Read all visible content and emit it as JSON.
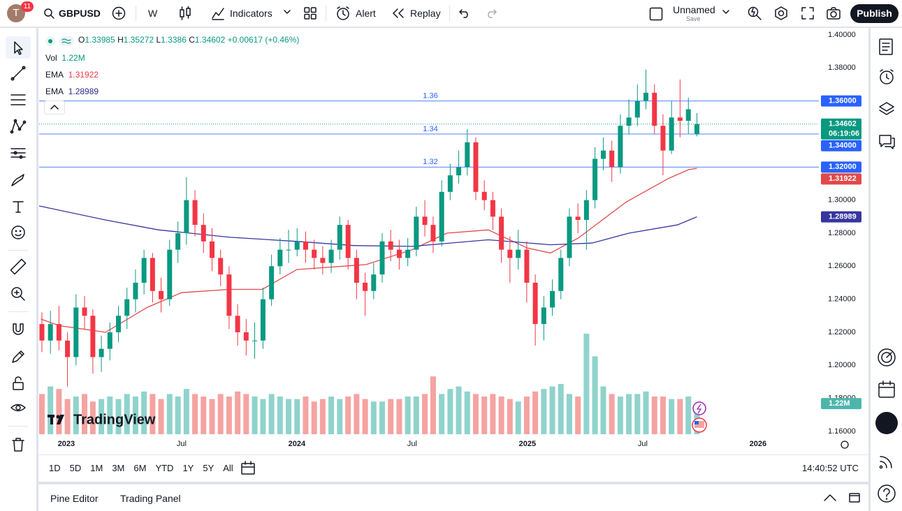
{
  "toolbar": {
    "avatar": "T",
    "badge": 11,
    "symbol": "GBPUSD",
    "interval": "W",
    "indicators": "Indicators",
    "alert": "Alert",
    "replay": "Replay",
    "layout_name": "Unnamed",
    "save": "Save",
    "publish": "Publish"
  },
  "chart_data": {
    "type": "candlestick",
    "watermark": "TradingView",
    "legend": {
      "open_key": "O",
      "high_key": "H",
      "low_key": "L",
      "close_key": "C",
      "change": {
        "value": 0.00617,
        "label": "+0.00617"
      },
      "change_pct": {
        "value": 0.46,
        "label": "(+0.46%)"
      },
      "volume_key": "Vol"
    },
    "x": [
      2022.894,
      2022.931,
      2022.968,
      2023.005,
      2023.042,
      2023.079,
      2023.115,
      2023.152,
      2023.189,
      2023.226,
      2023.263,
      2023.3,
      2023.337,
      2023.374,
      2023.411,
      2023.448,
      2023.484,
      2023.521,
      2023.558,
      2023.595,
      2023.632,
      2023.669,
      2023.706,
      2023.743,
      2023.78,
      2023.817,
      2023.853,
      2023.89,
      2023.927,
      2023.964,
      2024.001,
      2024.038,
      2024.075,
      2024.112,
      2024.149,
      2024.186,
      2024.222,
      2024.259,
      2024.296,
      2024.333,
      2024.37,
      2024.407,
      2024.444,
      2024.481,
      2024.518,
      2024.555,
      2024.591,
      2024.628,
      2024.665,
      2024.702,
      2024.739,
      2024.776,
      2024.813,
      2024.85,
      2024.887,
      2024.924,
      2024.96,
      2024.997,
      2025.034,
      2025.071,
      2025.108,
      2025.145,
      2025.182,
      2025.219,
      2025.256,
      2025.293,
      2025.329,
      2025.366,
      2025.403,
      2025.44,
      2025.477,
      2025.514,
      2025.551,
      2025.588,
      2025.625,
      2025.662,
      2025.698,
      2025.735
    ],
    "open": [
      1.225,
      1.215,
      1.225,
      1.215,
      1.205,
      1.235,
      1.23,
      1.205,
      1.21,
      1.22,
      1.23,
      1.24,
      1.25,
      1.265,
      1.245,
      1.24,
      1.27,
      1.28,
      1.3,
      1.285,
      1.275,
      1.265,
      1.255,
      1.23,
      1.22,
      1.215,
      1.215,
      1.24,
      1.26,
      1.27,
      1.27,
      1.275,
      1.27,
      1.265,
      1.262,
      1.27,
      1.285,
      1.265,
      1.25,
      1.245,
      1.255,
      1.275,
      1.27,
      1.265,
      1.27,
      1.29,
      1.285,
      1.275,
      1.305,
      1.315,
      1.32,
      1.335,
      1.305,
      1.3,
      1.29,
      1.27,
      1.265,
      1.27,
      1.25,
      1.225,
      1.235,
      1.245,
      1.265,
      1.29,
      1.288,
      1.3,
      1.325,
      1.33,
      1.32,
      1.345,
      1.35,
      1.36,
      1.365,
      1.345,
      1.33,
      1.35,
      1.348,
      1.33985
    ],
    "high": [
      1.232,
      1.233,
      1.236,
      1.22,
      1.243,
      1.242,
      1.234,
      1.218,
      1.226,
      1.236,
      1.247,
      1.258,
      1.27,
      1.268,
      1.253,
      1.276,
      1.287,
      1.314,
      1.306,
      1.292,
      1.283,
      1.27,
      1.26,
      1.237,
      1.228,
      1.226,
      1.247,
      1.267,
      1.277,
      1.282,
      1.283,
      1.281,
      1.276,
      1.272,
      1.276,
      1.29,
      1.288,
      1.27,
      1.256,
      1.262,
      1.28,
      1.282,
      1.276,
      1.277,
      1.296,
      1.3,
      1.29,
      1.312,
      1.322,
      1.33,
      1.343,
      1.338,
      1.312,
      1.305,
      1.295,
      1.278,
      1.282,
      1.275,
      1.255,
      1.242,
      1.252,
      1.27,
      1.295,
      1.298,
      1.306,
      1.332,
      1.338,
      1.336,
      1.352,
      1.361,
      1.37,
      1.379,
      1.37,
      1.352,
      1.36,
      1.373,
      1.362,
      1.35272
    ],
    "low": [
      1.208,
      1.207,
      1.209,
      1.187,
      1.2,
      1.222,
      1.195,
      1.196,
      1.203,
      1.214,
      1.222,
      1.232,
      1.243,
      1.238,
      1.232,
      1.236,
      1.262,
      1.273,
      1.278,
      1.268,
      1.257,
      1.248,
      1.222,
      1.212,
      1.206,
      1.204,
      1.21,
      1.236,
      1.255,
      1.262,
      1.266,
      1.262,
      1.258,
      1.255,
      1.256,
      1.264,
      1.258,
      1.24,
      1.23,
      1.24,
      1.25,
      1.263,
      1.258,
      1.26,
      1.266,
      1.278,
      1.268,
      1.272,
      1.3,
      1.31,
      1.315,
      1.3,
      1.294,
      1.282,
      1.262,
      1.25,
      1.258,
      1.238,
      1.212,
      1.215,
      1.23,
      1.24,
      1.26,
      1.28,
      1.27,
      1.295,
      1.318,
      1.311,
      1.316,
      1.34,
      1.345,
      1.355,
      1.34,
      1.315,
      1.328,
      1.338,
      1.34,
      1.3386
    ],
    "close": [
      1.215,
      1.225,
      1.215,
      1.205,
      1.235,
      1.23,
      1.205,
      1.21,
      1.22,
      1.23,
      1.24,
      1.25,
      1.265,
      1.245,
      1.24,
      1.27,
      1.28,
      1.3,
      1.285,
      1.275,
      1.265,
      1.255,
      1.23,
      1.22,
      1.215,
      1.215,
      1.24,
      1.26,
      1.27,
      1.27,
      1.275,
      1.27,
      1.265,
      1.262,
      1.27,
      1.285,
      1.265,
      1.25,
      1.245,
      1.255,
      1.275,
      1.27,
      1.265,
      1.27,
      1.29,
      1.285,
      1.275,
      1.305,
      1.315,
      1.32,
      1.335,
      1.305,
      1.3,
      1.29,
      1.27,
      1.265,
      1.27,
      1.25,
      1.225,
      1.235,
      1.245,
      1.265,
      1.29,
      1.288,
      1.3,
      1.325,
      1.33,
      1.32,
      1.345,
      1.35,
      1.36,
      1.365,
      1.345,
      1.33,
      1.35,
      1.348,
      1.355,
      1.34602
    ],
    "volume": [
      1.6,
      1.9,
      1.8,
      1.4,
      1.5,
      1.6,
      1.3,
      1.4,
      1.5,
      1.4,
      1.6,
      1.5,
      1.7,
      1.6,
      1.4,
      1.6,
      1.5,
      1.8,
      1.6,
      1.5,
      1.4,
      1.6,
      1.5,
      1.7,
      1.6,
      1.5,
      1.4,
      1.6,
      1.5,
      1.4,
      1.4,
      1.5,
      1.3,
      1.4,
      1.5,
      1.4,
      1.5,
      1.6,
      1.4,
      1.3,
      1.3,
      1.4,
      1.4,
      1.5,
      1.5,
      1.6,
      2.3,
      1.6,
      1.8,
      1.9,
      1.7,
      1.6,
      1.5,
      1.6,
      1.5,
      1.4,
      1.3,
      1.5,
      1.7,
      1.8,
      1.9,
      2.0,
      1.6,
      1.5,
      4.0,
      3.1,
      1.9,
      1.6,
      1.5,
      1.6,
      1.6,
      1.7,
      1.5,
      1.5,
      1.4,
      1.4,
      1.5,
      1.22
    ],
    "volume_label": "1.22M",
    "countdown": "06:19:06",
    "up_color": "#089981",
    "down_color": "#f23645",
    "up_volume_color": "#8fd3cc",
    "down_volume_color": "#f5a3a1",
    "ema": [
      {
        "name": "EMA",
        "color": "#e04a4a",
        "x": [
          2022.89,
          2022.97,
          2023.17,
          2023.35,
          2023.5,
          2023.71,
          2023.85,
          2024.0,
          2024.3,
          2024.5,
          2024.65,
          2024.83,
          2025.0,
          2025.1,
          2025.22,
          2025.43,
          2025.61,
          2025.7,
          2025.735
        ],
        "values": [
          1.228,
          1.224,
          1.22,
          1.235,
          1.244,
          1.246,
          1.246,
          1.258,
          1.261,
          1.27,
          1.28,
          1.282,
          1.271,
          1.268,
          1.277,
          1.299,
          1.313,
          1.3185,
          1.31922
        ]
      },
      {
        "name": "EMA",
        "color": "#3636a0",
        "x": [
          2022.882,
          2023.17,
          2023.4,
          2023.71,
          2024.0,
          2024.25,
          2024.5,
          2024.83,
          2025.1,
          2025.28,
          2025.44,
          2025.65,
          2025.735
        ],
        "values": [
          1.2965,
          1.288,
          1.282,
          1.2775,
          1.275,
          1.2725,
          1.272,
          1.276,
          1.273,
          1.274,
          1.28,
          1.285,
          1.28989
        ]
      }
    ],
    "hlines": [
      {
        "value": 1.36,
        "label": "1.36000"
      },
      {
        "value": 1.34,
        "label": "1.34000"
      },
      {
        "value": 1.32,
        "label": "1.32000"
      }
    ],
    "hline_color": "#2962ff",
    "xlim": [
      2022.882,
      2026.264
    ],
    "ylim": [
      1.15704,
      1.40423
    ],
    "yticks": [
      {
        "value": 1.4,
        "label": "1.40000"
      },
      {
        "value": 1.38,
        "label": "1.38000"
      },
      {
        "value": 1.36,
        "label": "1.36000"
      },
      {
        "value": 1.34,
        "label": "1.34000"
      },
      {
        "value": 1.32,
        "label": "1.32000"
      },
      {
        "value": 1.3,
        "label": "1.30000"
      },
      {
        "value": 1.28,
        "label": "1.28000"
      },
      {
        "value": 1.26,
        "label": "1.26000"
      },
      {
        "value": 1.24,
        "label": "1.24000"
      },
      {
        "value": 1.22,
        "label": "1.22000"
      },
      {
        "value": 1.2,
        "label": "1.20000"
      },
      {
        "value": 1.18,
        "label": "1.18000"
      },
      {
        "value": 1.16,
        "label": "1.16000"
      }
    ],
    "xticks": [
      {
        "value": 2023,
        "label": "2023"
      },
      {
        "value": 2023.5,
        "label": "Jul"
      },
      {
        "value": 2024,
        "label": "2024"
      },
      {
        "value": 2024.5,
        "label": "Jul"
      },
      {
        "value": 2025,
        "label": "2025"
      },
      {
        "value": 2025.5,
        "label": "Jul"
      },
      {
        "value": 2026,
        "label": "2026"
      }
    ],
    "grid": false
  },
  "range_bar": {
    "ranges": [
      "1D",
      "5D",
      "1M",
      "3M",
      "6M",
      "YTD",
      "1Y",
      "5Y",
      "All"
    ],
    "clock": "14:40:52 UTC"
  },
  "bottom_panel": {
    "tabs": [
      "Pine Editor",
      "Trading Panel"
    ]
  }
}
